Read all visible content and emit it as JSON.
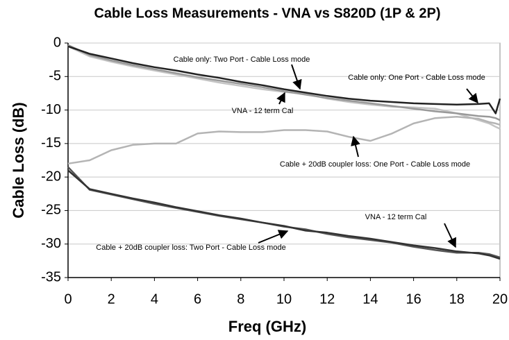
{
  "chart_data": {
    "type": "line",
    "title": "Cable Loss Measurements - VNA vs S820D (1P & 2P)",
    "xlabel": "Freq (GHz)",
    "ylabel": "Cable Loss (dB)",
    "xlim": [
      0,
      20
    ],
    "ylim": [
      -35,
      0
    ],
    "xticks": [
      0,
      2,
      4,
      6,
      8,
      10,
      12,
      14,
      16,
      18,
      20
    ],
    "yticks": [
      0,
      -5,
      -10,
      -15,
      -20,
      -25,
      -30,
      -35
    ],
    "grid": true,
    "x": [
      0,
      1,
      2,
      3,
      4,
      5,
      6,
      7,
      8,
      9,
      10,
      11,
      12,
      13,
      14,
      15,
      16,
      17,
      18,
      19,
      19.5,
      19.8,
      20
    ],
    "series": [
      {
        "color": "#c4c4c4",
        "values": [
          -0.5,
          -2,
          -2.8,
          -3.5,
          -4.1,
          -4.7,
          -5.3,
          -5.9,
          -6.4,
          -6.9,
          -7.3,
          -7.6,
          -8.3,
          -8.8,
          -9.2,
          -9.5,
          -9.6,
          -9.8,
          -10.5,
          -11.5,
          -12,
          -12.5,
          -12.8
        ]
      },
      {
        "color": "#999999",
        "values": [
          -0.3,
          -1.8,
          -2.6,
          -3.3,
          -3.9,
          -4.5,
          -5.1,
          -5.6,
          -6.1,
          -6.6,
          -7.2,
          -7.7,
          -8.2,
          -8.6,
          -9,
          -9.4,
          -9.8,
          -10.2,
          -10.5,
          -10.9,
          -11,
          -11.2,
          -11.5
        ]
      },
      {
        "color": "#222222",
        "values": [
          -0.5,
          -1.6,
          -2.3,
          -3,
          -3.6,
          -4.1,
          -4.7,
          -5.2,
          -5.8,
          -6.3,
          -6.9,
          -7.4,
          -7.9,
          -8.3,
          -8.6,
          -8.8,
          -9,
          -9.1,
          -9.2,
          -9.1,
          -9,
          -10.5,
          -8.3
        ]
      },
      {
        "color": "#b4b4b4",
        "values": [
          -18,
          -17.5,
          -16,
          -15.2,
          -15,
          -15,
          -13.5,
          -13.2,
          -13.3,
          -13.3,
          -13,
          -13,
          -13.2,
          -14,
          -14.6,
          -13.5,
          -12,
          -11.2,
          -11,
          -11.3,
          -11.8,
          -12,
          -12.2
        ]
      },
      {
        "color": "#555555",
        "values": [
          -18.5,
          -21.9,
          -22.6,
          -23.3,
          -24,
          -24.6,
          -25.2,
          -25.8,
          -26.3,
          -26.8,
          -27.4,
          -27.8,
          -28.5,
          -29,
          -29.4,
          -29.8,
          -30.4,
          -30.9,
          -31.3,
          -31.3,
          -31.5,
          -31.8,
          -32
        ]
      },
      {
        "color": "#333333",
        "values": [
          -19,
          -21.8,
          -22.5,
          -23.2,
          -23.8,
          -24.5,
          -25.1,
          -25.7,
          -26.2,
          -26.8,
          -27.3,
          -28,
          -28.3,
          -28.8,
          -29.2,
          -29.7,
          -30.2,
          -30.6,
          -31.1,
          -31.4,
          -31.7,
          -32,
          -32.2
        ]
      }
    ],
    "annotations": [
      "Cable only: Two Port - Cable Loss mode",
      "Cable only: One Port - Cable Loss mode",
      "VNA - 12 term Cal",
      "Cable + 20dB coupler loss: One Port - Cable Loss mode",
      "VNA - 12 term Cal",
      "Cable + 20dB coupler loss: Two Port - Cable Loss mode"
    ]
  }
}
